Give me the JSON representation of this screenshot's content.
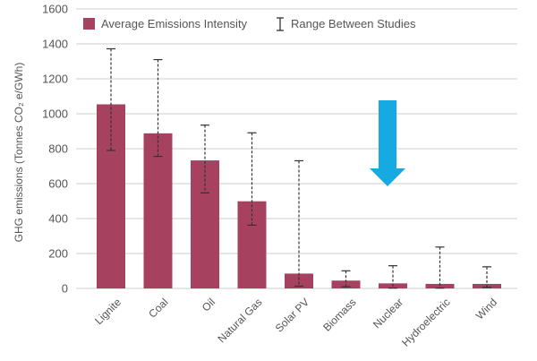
{
  "chart_data": {
    "type": "bar",
    "categories": [
      "Lignite",
      "Coal",
      "Oil",
      "Natural Gas",
      "Solar PV",
      "Biomass",
      "Nuclear",
      "Hydroelectric",
      "Wind"
    ],
    "series": [
      {
        "name": "Average Emissions Intensity",
        "values": [
          1054,
          888,
          733,
          499,
          85,
          45,
          29,
          26,
          26
        ]
      }
    ],
    "ranges": {
      "name": "Range Between Studies",
      "low": [
        790,
        756,
        547,
        362,
        13,
        10,
        2,
        2,
        6
      ],
      "high": [
        1372,
        1310,
        935,
        891,
        731,
        101,
        130,
        237,
        124
      ]
    },
    "xlabel": "",
    "ylabel": "GHG emissions (Tonnes CO₂ e/GWh)",
    "ylim": [
      0,
      1600
    ],
    "yticks": [
      "0",
      "200",
      "400",
      "600",
      "800",
      "1000",
      "1200",
      "1400",
      "1600"
    ],
    "grid": true,
    "legend_position": "top",
    "colors": {
      "bar": "#a6415f",
      "grid": "#cccccc",
      "axis_text": "#555555",
      "arrow": "#17a9e1",
      "errorbar": "#333333"
    },
    "annotation": "downward-arrow-icon"
  }
}
